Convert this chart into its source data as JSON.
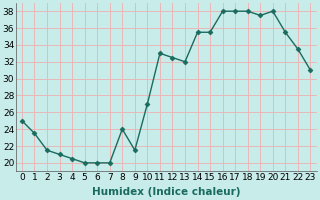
{
  "x": [
    0,
    1,
    2,
    3,
    4,
    5,
    6,
    7,
    8,
    9,
    10,
    11,
    12,
    13,
    14,
    15,
    16,
    17,
    18,
    19,
    20,
    21,
    22,
    23
  ],
  "y": [
    25,
    23.5,
    21.5,
    21,
    20.5,
    20,
    20,
    20,
    24,
    21.5,
    27,
    33,
    32.5,
    32,
    35.5,
    35.5,
    38,
    38,
    38,
    37.5,
    38,
    35.5,
    33.5,
    31
  ],
  "line_color": "#1a6b5e",
  "marker": "D",
  "markersize": 2.5,
  "linewidth": 1.0,
  "xlabel": "Humidex (Indice chaleur)",
  "xlim": [
    -0.5,
    23.5
  ],
  "ylim": [
    19,
    39
  ],
  "yticks": [
    20,
    22,
    24,
    26,
    28,
    30,
    32,
    34,
    36,
    38
  ],
  "xtick_labels": [
    "0",
    "1",
    "2",
    "3",
    "4",
    "5",
    "6",
    "7",
    "8",
    "9",
    "10",
    "11",
    "12",
    "13",
    "14",
    "15",
    "16",
    "17",
    "18",
    "19",
    "20",
    "21",
    "22",
    "23"
  ],
  "bg_color": "#c8ecea",
  "grid_color": "#e8b8b8",
  "xlabel_fontsize": 7.5,
  "tick_fontsize": 6.5,
  "figure_width": 3.2,
  "figure_height": 2.0,
  "dpi": 100
}
